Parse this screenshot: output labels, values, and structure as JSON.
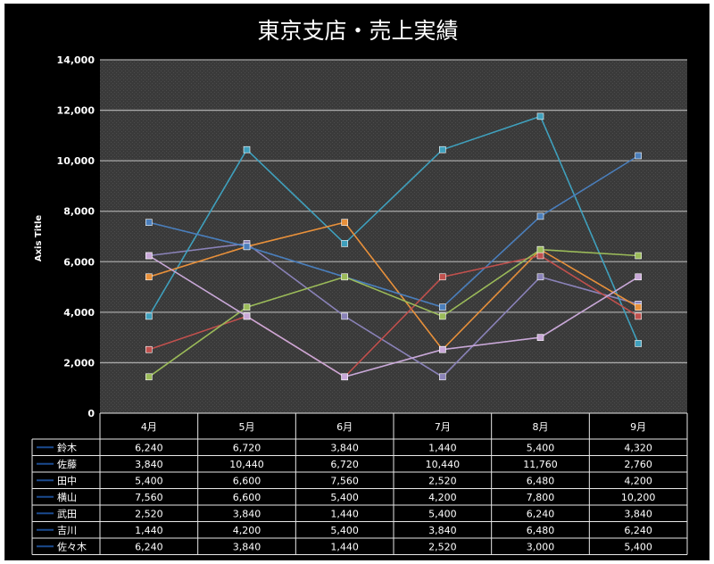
{
  "chart_data": {
    "type": "line",
    "title": "東京支店・売上実績",
    "ylabel": "Axis Title",
    "xlabel": "",
    "ylim": [
      0,
      14000
    ],
    "yticks": [
      0,
      2000,
      4000,
      6000,
      8000,
      10000,
      12000,
      14000
    ],
    "ytick_labels": [
      "0",
      "2,000",
      "4,000",
      "6,000",
      "8,000",
      "10,000",
      "12,000",
      "14,000"
    ],
    "grid": true,
    "legend": "data-table",
    "categories": [
      "4月",
      "5月",
      "6月",
      "7月",
      "8月",
      "9月"
    ],
    "series": [
      {
        "name": "鈴木",
        "color": "#8a82b8",
        "values": [
          6240,
          6720,
          3840,
          1440,
          5400,
          4320
        ],
        "labels": [
          "6,240",
          "6,720",
          "3,840",
          "1,440",
          "5,400",
          "4,320"
        ]
      },
      {
        "name": "佐藤",
        "color": "#3fa0bd",
        "values": [
          3840,
          10440,
          6720,
          10440,
          11760,
          2760
        ],
        "labels": [
          "3,840",
          "10,440",
          "6,720",
          "10,440",
          "11,760",
          "2,760"
        ]
      },
      {
        "name": "田中",
        "color": "#e8903a",
        "values": [
          5400,
          6600,
          7560,
          2520,
          6480,
          4200
        ],
        "labels": [
          "5,400",
          "6,600",
          "7,560",
          "2,520",
          "6,480",
          "4,200"
        ]
      },
      {
        "name": "横山",
        "color": "#4a7ebb",
        "values": [
          7560,
          6600,
          5400,
          4200,
          7800,
          10200
        ],
        "labels": [
          "7,560",
          "6,600",
          "5,400",
          "4,200",
          "7,800",
          "10,200"
        ]
      },
      {
        "name": "武田",
        "color": "#c0504d",
        "values": [
          2520,
          3840,
          1440,
          5400,
          6240,
          3840
        ],
        "labels": [
          "2,520",
          "3,840",
          "1,440",
          "5,400",
          "6,240",
          "3,840"
        ]
      },
      {
        "name": "吉川",
        "color": "#9bbb59",
        "values": [
          1440,
          4200,
          5400,
          3840,
          6480,
          6240
        ],
        "labels": [
          "1,440",
          "4,200",
          "5,400",
          "3,840",
          "6,480",
          "6,240"
        ]
      },
      {
        "name": "佐々木",
        "color": "#c9a8d8",
        "values": [
          6240,
          3840,
          1440,
          2520,
          3000,
          5400
        ],
        "labels": [
          "6,240",
          "3,840",
          "1,440",
          "2,520",
          "3,000",
          "5,400"
        ]
      }
    ]
  }
}
